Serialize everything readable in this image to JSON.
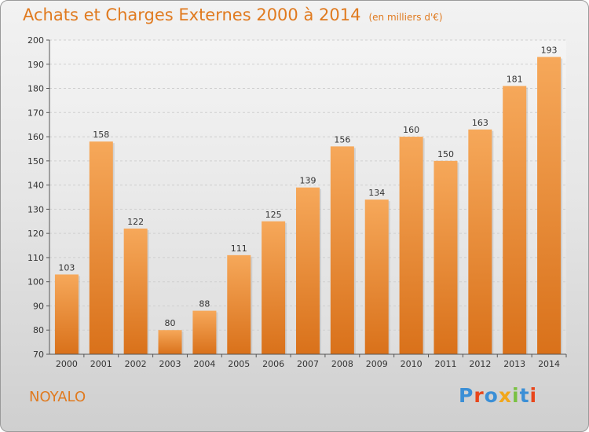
{
  "header": {
    "title": "Achats et Charges Externes 2000 à 2014",
    "subtitle": "(en milliers d'€)"
  },
  "footer": {
    "place": "NOYALO",
    "brand": "Proxiti",
    "brand_colors": [
      "#3b8fd6",
      "#e8461b",
      "#3b8fd6",
      "#f2a71b",
      "#7ac143",
      "#3b8fd6",
      "#e8461b"
    ]
  },
  "colors": {
    "bar_top": "#f6a85a",
    "bar_bottom": "#d9711a",
    "title": "#e07a1f"
  },
  "chart_data": {
    "type": "bar",
    "title": "Achats et Charges Externes 2000 à 2014",
    "subtitle": "(en milliers d'€)",
    "categories": [
      "2000",
      "2001",
      "2002",
      "2003",
      "2004",
      "2005",
      "2006",
      "2007",
      "2008",
      "2009",
      "2010",
      "2011",
      "2012",
      "2013",
      "2014"
    ],
    "values": [
      103,
      158,
      122,
      80,
      88,
      111,
      125,
      139,
      156,
      134,
      160,
      150,
      163,
      181,
      193
    ],
    "ylim": [
      70,
      200
    ],
    "yticks": [
      70,
      80,
      90,
      100,
      110,
      120,
      130,
      140,
      150,
      160,
      170,
      180,
      190,
      200
    ],
    "grid": true
  }
}
